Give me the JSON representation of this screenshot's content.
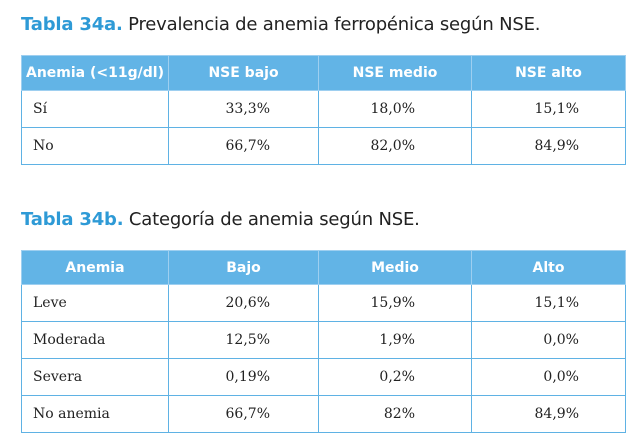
{
  "table_a": {
    "label": "Tabla 34a.",
    "title": "Prevalencia de anemia ferropénica según NSE.",
    "headers": [
      "Anemia (<11g/dl)",
      "NSE bajo",
      "NSE medio",
      "NSE alto"
    ],
    "rows": [
      [
        "Sí",
        "33,3%",
        "18,0%",
        "15,1%"
      ],
      [
        "No",
        "66,7%",
        "82,0%",
        "84,9%"
      ]
    ]
  },
  "table_b": {
    "label": "Tabla 34b.",
    "title": "Categoría de anemia según NSE.",
    "headers": [
      "Anemia",
      "Bajo",
      "Medio",
      "Alto"
    ],
    "rows": [
      [
        "Leve",
        "20,6%",
        "15,9%",
        "15,1%"
      ],
      [
        "Moderada",
        "12,5%",
        "1,9%",
        "0,0%"
      ],
      [
        "Severa",
        "0,19%",
        "0,2%",
        "0,0%"
      ],
      [
        "No anemia",
        "66,7%",
        "82%",
        "84,9%"
      ]
    ]
  },
  "colors": {
    "header_bg": "#62b4e6",
    "label_blue": "#2e9ad6",
    "border": "#5fb2e4"
  }
}
